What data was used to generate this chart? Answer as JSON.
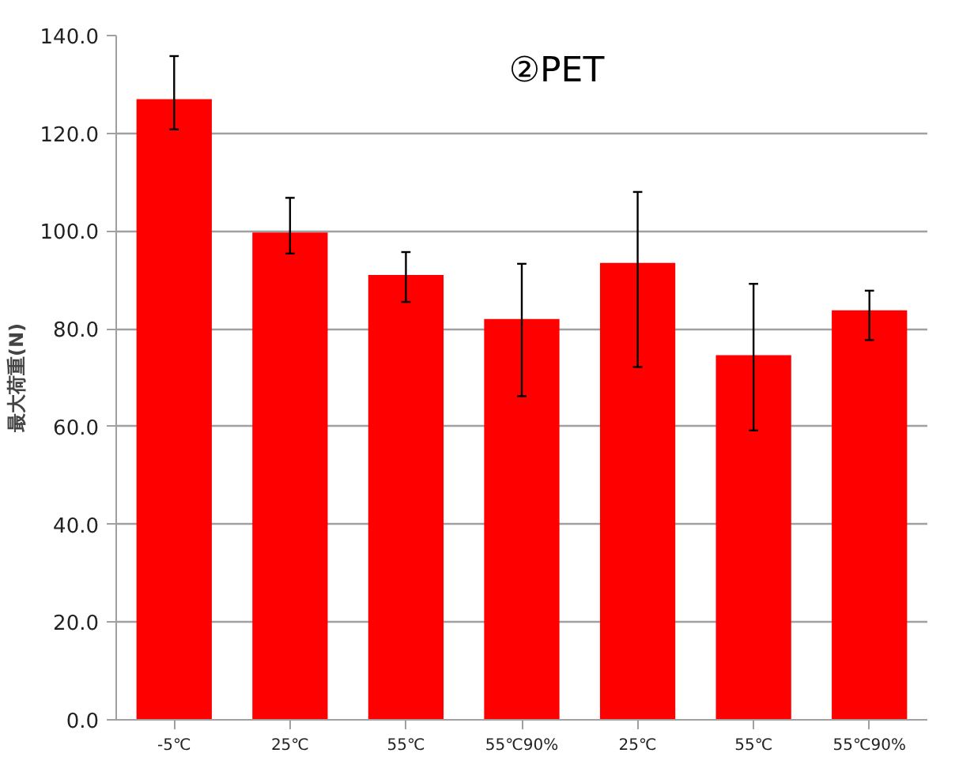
{
  "chart_data": {
    "type": "bar",
    "title": "②PET",
    "ylabel": "最大荷重(N)",
    "categories": [
      "-5℃",
      "25℃",
      "55℃",
      "55℃90%",
      "25℃",
      "55℃",
      "55℃90%"
    ],
    "values": [
      127.0,
      99.7,
      91.0,
      82.0,
      93.5,
      74.6,
      83.8
    ],
    "errors": [
      [
        120.8,
        135.8
      ],
      [
        95.4,
        106.8
      ],
      [
        85.5,
        95.7
      ],
      [
        66.2,
        93.3
      ],
      [
        72.2,
        108.0
      ],
      [
        59.2,
        89.2
      ],
      [
        77.7,
        87.8
      ]
    ],
    "color": "#ff0000",
    "ylim": [
      0,
      140
    ],
    "yticks": [
      {
        "value": 0,
        "label": "0.0"
      },
      {
        "value": 20,
        "label": "20.0"
      },
      {
        "value": 40,
        "label": "40.0"
      },
      {
        "value": 60,
        "label": "60.0"
      },
      {
        "value": 80,
        "label": "80.0"
      },
      {
        "value": 100,
        "label": "100.0"
      },
      {
        "value": 120,
        "label": "120.0"
      },
      {
        "value": 140,
        "label": "140.0"
      }
    ],
    "grid": "y"
  }
}
